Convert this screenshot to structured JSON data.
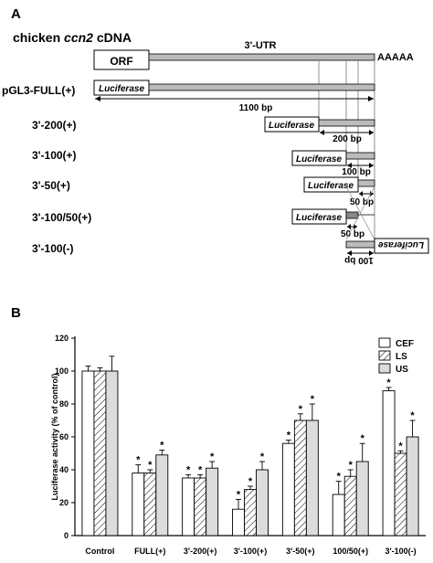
{
  "panel_a": {
    "label": "A",
    "title_prefix": "chicken ",
    "title_gene": "ccn2",
    "title_suffix": " cDNA",
    "orf": "ORF",
    "utr": "3'-UTR",
    "polya": "AAAAA",
    "luciferase": "Luciferase",
    "constructs": [
      {
        "name": "pGL3-FULL(+)",
        "size_label": "1100 bp"
      },
      {
        "name": "3'-200(+)",
        "size_label": "200 bp"
      },
      {
        "name": "3'-100(+)",
        "size_label": "100 bp"
      },
      {
        "name": "3'-50(+)",
        "size_label": "50 bp"
      },
      {
        "name": "3'-100/50(+)",
        "size_label": "50 bp"
      },
      {
        "name": "3'-100(-)",
        "size_label": "100 bp"
      }
    ]
  },
  "panel_b": {
    "label": "B",
    "colors": {
      "bar_edge": "#000000",
      "ls_hatch": "#000000",
      "us_fill": "#dcdcdc",
      "cef_fill": "#ffffff"
    }
  },
  "chart_data": {
    "type": "bar",
    "ylabel": "Luciferase activity (% of control)",
    "ylim": [
      0,
      120
    ],
    "yticks": [
      0,
      20,
      40,
      60,
      80,
      100,
      120
    ],
    "categories": [
      "Control",
      "FULL(+)",
      "3'-200(+)",
      "3'-100(+)",
      "3'-50(+)",
      "100/50(+)",
      "3'-100(-)"
    ],
    "legend_position": "top-right",
    "series": [
      {
        "name": "CEF",
        "values": [
          100,
          38,
          35,
          16,
          56,
          25,
          88
        ],
        "errors": [
          3,
          5,
          2,
          6,
          2,
          8,
          2
        ],
        "sig": [
          false,
          true,
          true,
          true,
          true,
          true,
          true
        ]
      },
      {
        "name": "LS",
        "values": [
          100,
          38,
          35,
          28,
          70,
          36,
          50
        ],
        "errors": [
          2,
          2,
          2,
          2,
          4,
          4,
          1.5
        ],
        "sig": [
          false,
          true,
          true,
          true,
          true,
          true,
          true
        ]
      },
      {
        "name": "US",
        "values": [
          100,
          49,
          41,
          40,
          70,
          45,
          60
        ],
        "errors": [
          9,
          3,
          4,
          5,
          10,
          11,
          10
        ],
        "sig": [
          false,
          true,
          true,
          true,
          true,
          true,
          true
        ]
      }
    ]
  }
}
